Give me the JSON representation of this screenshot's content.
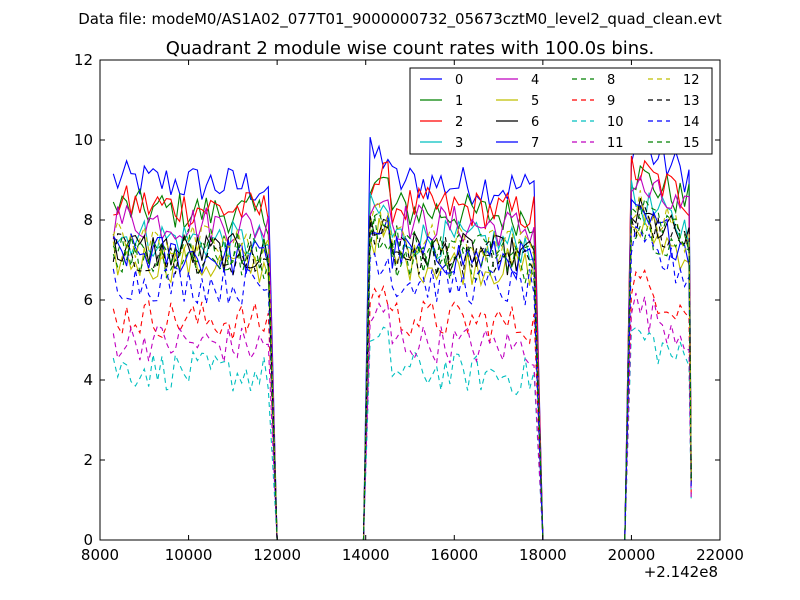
{
  "chart_data": {
    "type": "line",
    "suptitle": "Data file: modeM0/AS1A02_077T01_9000000732_05673cztM0_level2_quad_clean.evt",
    "title": "Quadrant 2 module wise count rates with 100.0s bins.",
    "xlabel": "",
    "ylabel": "",
    "x_offset_label": "+2.142e8",
    "xlim": [
      8000,
      22000
    ],
    "ylim": [
      0,
      12
    ],
    "xticks": [
      8000,
      10000,
      12000,
      14000,
      16000,
      18000,
      20000,
      22000
    ],
    "yticks": [
      0,
      2,
      4,
      6,
      8,
      10,
      12
    ],
    "legend_position": "top-right",
    "legend_columns": 4,
    "bin_size_s": 100,
    "segments": [
      {
        "on_start": 8300,
        "on_end": 11850,
        "off_end": 12000
      },
      {
        "off_start": 12000,
        "ramp_start": 13950,
        "on_start": 14200,
        "on_end": 17850,
        "off_end": 18000
      },
      {
        "off_start": 18000,
        "ramp_start": 19850,
        "on_start": 20100,
        "on_end": 21300
      }
    ],
    "series": [
      {
        "name": "0",
        "color": "#0000ff",
        "dash": "solid",
        "level": 9.0
      },
      {
        "name": "1",
        "color": "#008000",
        "dash": "solid",
        "level": 8.3
      },
      {
        "name": "2",
        "color": "#ff0000",
        "dash": "solid",
        "level": 8.4
      },
      {
        "name": "3",
        "color": "#00bfbf",
        "dash": "solid",
        "level": 7.6
      },
      {
        "name": "4",
        "color": "#bf00bf",
        "dash": "solid",
        "level": 8.0
      },
      {
        "name": "5",
        "color": "#bfbf00",
        "dash": "solid",
        "level": 7.0
      },
      {
        "name": "6",
        "color": "#000000",
        "dash": "solid",
        "level": 7.3
      },
      {
        "name": "7",
        "color": "#0000ff",
        "dash": "solid",
        "level": 7.2
      },
      {
        "name": "8",
        "color": "#008000",
        "dash": "dash",
        "level": 7.1
      },
      {
        "name": "9",
        "color": "#ff0000",
        "dash": "dash",
        "level": 5.6
      },
      {
        "name": "10",
        "color": "#00bfbf",
        "dash": "dash",
        "level": 4.3
      },
      {
        "name": "11",
        "color": "#bf00bf",
        "dash": "dash",
        "level": 5.0
      },
      {
        "name": "12",
        "color": "#bfbf00",
        "dash": "dash",
        "level": 7.5
      },
      {
        "name": "13",
        "color": "#000000",
        "dash": "dash",
        "level": 7.2
      },
      {
        "name": "14",
        "color": "#0000ff",
        "dash": "dash",
        "level": 6.5
      },
      {
        "name": "15",
        "color": "#008000",
        "dash": "dash",
        "level": 7.4
      }
    ]
  }
}
